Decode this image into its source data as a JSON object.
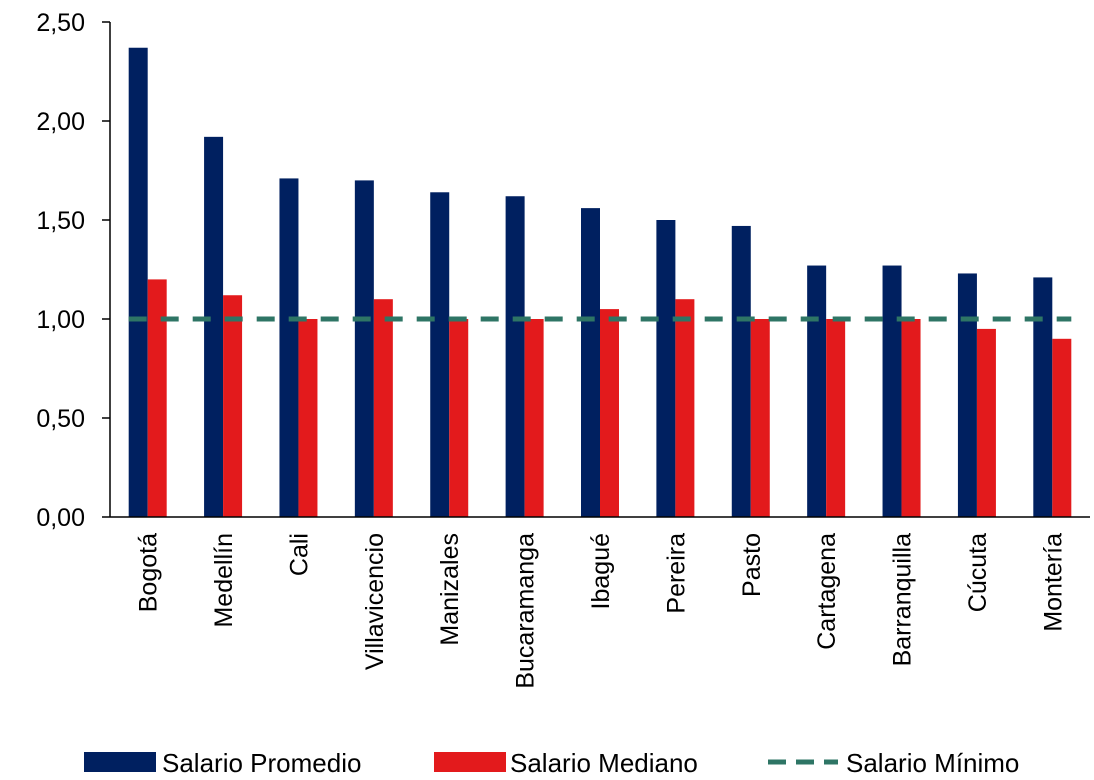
{
  "chart_data": {
    "type": "bar",
    "title": "",
    "xlabel": "",
    "ylabel": "",
    "ylim": [
      0,
      2.5
    ],
    "yticks": [
      "0,00",
      "0,50",
      "1,00",
      "1,50",
      "2,00",
      "2,50"
    ],
    "ytick_values": [
      0,
      0.5,
      1.0,
      1.5,
      2.0,
      2.5
    ],
    "grid": false,
    "legend_position": "bottom",
    "categories": [
      "Bogotá",
      "Medellín",
      "Cali",
      "Villavicencio",
      "Manizales",
      "Bucaramanga",
      "Ibagué",
      "Pereira",
      "Pasto",
      "Cartagena",
      "Barranquilla",
      "Cúcuta",
      "Montería"
    ],
    "series": [
      {
        "name": "Salario Promedio",
        "type": "bar",
        "color": "#002060",
        "values": [
          2.37,
          1.92,
          1.71,
          1.7,
          1.64,
          1.62,
          1.56,
          1.5,
          1.47,
          1.27,
          1.27,
          1.23,
          1.21
        ]
      },
      {
        "name": "Salario Mediano",
        "type": "bar",
        "color": "#E31A1C",
        "values": [
          1.2,
          1.12,
          1.0,
          1.1,
          1.0,
          1.0,
          1.05,
          1.1,
          1.0,
          1.0,
          1.0,
          0.95,
          0.9
        ]
      },
      {
        "name": "Salario Mínimo",
        "type": "line",
        "style": "dashed",
        "color": "#2E7565",
        "values": [
          1,
          1,
          1,
          1,
          1,
          1,
          1,
          1,
          1,
          1,
          1,
          1,
          1
        ]
      }
    ]
  }
}
